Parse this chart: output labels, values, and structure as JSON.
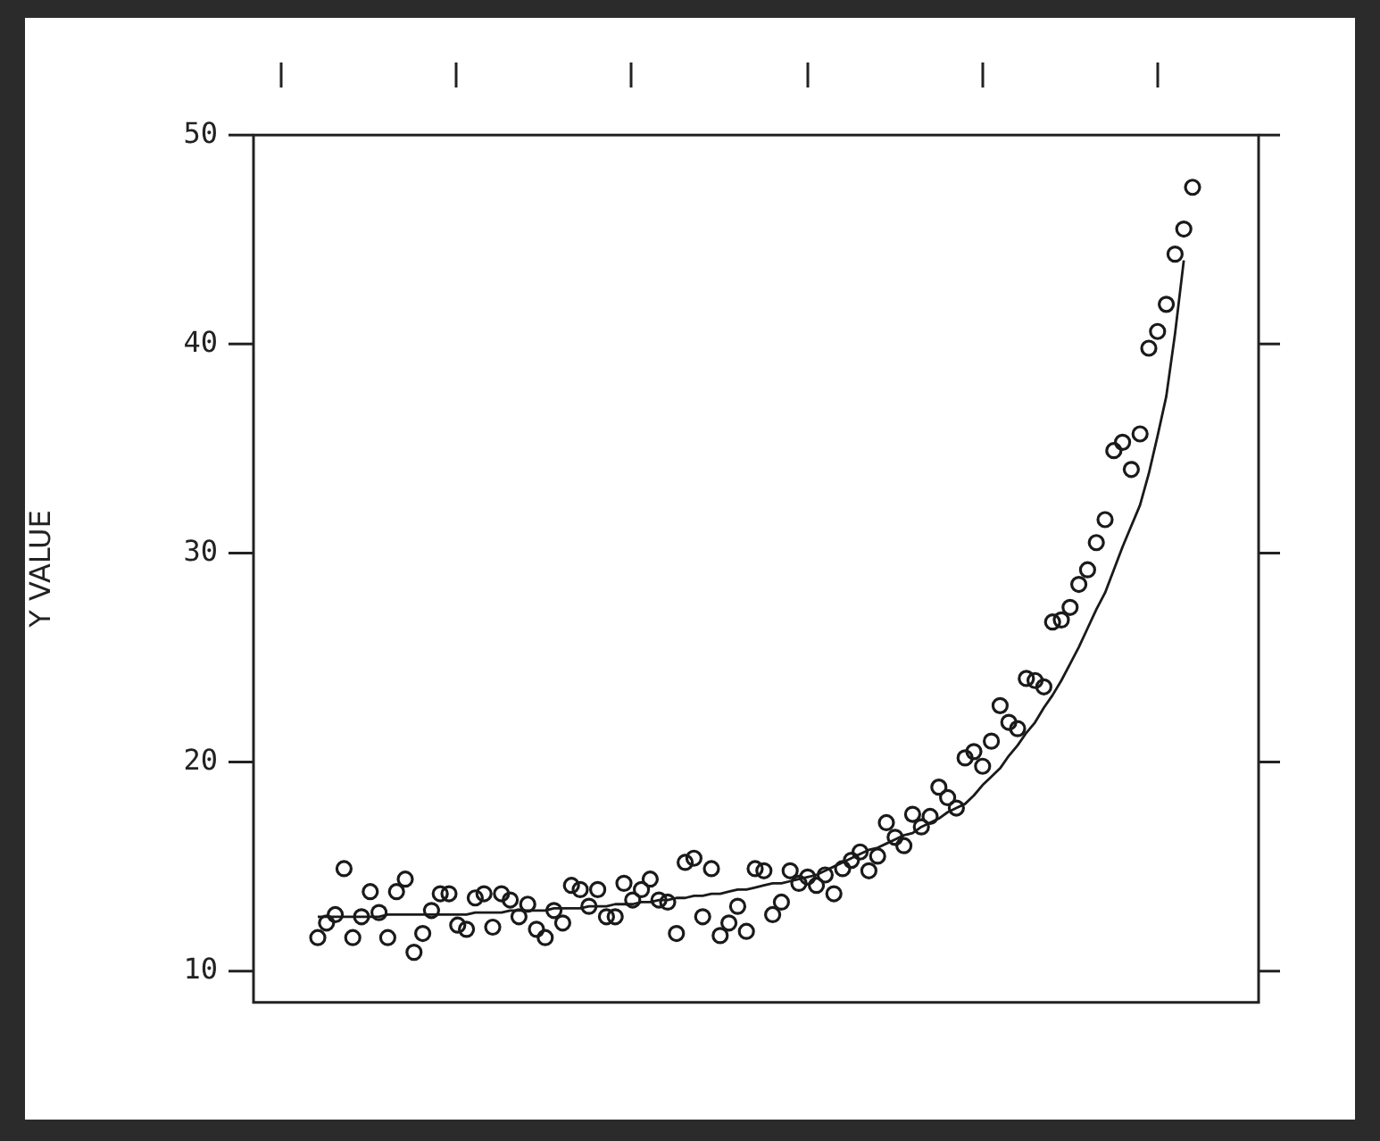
{
  "chart_data": {
    "type": "scatter",
    "ylabel": "Y VALUE",
    "categories": [
      null,
      null,
      null,
      null,
      null,
      null,
      null,
      null,
      null,
      null,
      null,
      null,
      null,
      null,
      null,
      null,
      null,
      null,
      null,
      null,
      null,
      null,
      null,
      null,
      null,
      null,
      null,
      null,
      null,
      null,
      null,
      null,
      null,
      null,
      null,
      null,
      null,
      null,
      null,
      null,
      null,
      null,
      null,
      null,
      null,
      null,
      null,
      null,
      null,
      null,
      null,
      null,
      null,
      null,
      null,
      null,
      null,
      null,
      null,
      null,
      null,
      null,
      null,
      null,
      null,
      null,
      null,
      null,
      null,
      null,
      null,
      null,
      null,
      null,
      null,
      null,
      null,
      null,
      null,
      null,
      null,
      null,
      null,
      null,
      null,
      null,
      null,
      null,
      null,
      null,
      null,
      null,
      null,
      null,
      null,
      null,
      null,
      null,
      null,
      null,
      null
    ],
    "ylim": [
      8.5,
      50
    ],
    "yticks": [
      10,
      20,
      30,
      40,
      50
    ],
    "tick_labels": "y",
    "legend": false,
    "series": [
      {
        "color": "#1a1a1a",
        "marker": "circle",
        "values": [
          11.6,
          12.3,
          12.7,
          14.9,
          11.6,
          12.6,
          13.8,
          12.8,
          11.6,
          13.8,
          14.4,
          10.9,
          11.8,
          12.9,
          13.7,
          13.7,
          12.2,
          12.0,
          13.5,
          13.7,
          12.1,
          13.7,
          13.4,
          12.6,
          13.2,
          12.0,
          11.6,
          12.9,
          12.3,
          14.1,
          13.9,
          13.1,
          13.9,
          12.6,
          12.6,
          14.2,
          13.4,
          13.9,
          14.4,
          13.4,
          13.3,
          11.8,
          15.2,
          15.4,
          12.6,
          14.9,
          11.7,
          12.3,
          13.1,
          11.9,
          14.9,
          14.8,
          12.7,
          13.3,
          14.8,
          14.2,
          14.5,
          14.1,
          14.6,
          13.7,
          14.9,
          15.3,
          15.7,
          14.8,
          15.5,
          17.1,
          16.4,
          16.0,
          17.5,
          16.9,
          17.4,
          18.8,
          18.3,
          17.8,
          20.2,
          20.5,
          19.8,
          21.0,
          22.7,
          21.9,
          21.6,
          24.0,
          23.9,
          23.6,
          26.7,
          26.8,
          27.4,
          28.5,
          29.2,
          30.5,
          31.6,
          34.9,
          35.3,
          34.0,
          35.7,
          39.8,
          40.6,
          41.9,
          44.3,
          45.5,
          47.5
        ]
      },
      {
        "type": "line",
        "color": "#1a1a1a",
        "values": [
          12.6,
          12.6,
          12.6,
          12.6,
          12.6,
          12.6,
          12.6,
          12.6,
          12.7,
          12.7,
          12.7,
          12.7,
          12.7,
          12.7,
          12.7,
          12.7,
          12.7,
          12.7,
          12.8,
          12.8,
          12.8,
          12.8,
          12.9,
          12.9,
          12.9,
          12.9,
          12.9,
          13.0,
          13.0,
          13.0,
          13.0,
          13.1,
          13.1,
          13.1,
          13.2,
          13.2,
          13.2,
          13.3,
          13.3,
          13.4,
          13.4,
          13.5,
          13.5,
          13.6,
          13.6,
          13.7,
          13.7,
          13.8,
          13.9,
          13.9,
          14.0,
          14.1,
          14.2,
          14.2,
          14.3,
          14.4,
          14.5,
          14.6,
          14.8,
          15.0,
          15.2,
          15.4,
          15.6,
          15.8,
          15.9,
          16.1,
          16.3,
          16.5,
          16.6,
          16.9,
          17.1,
          17.3,
          17.6,
          17.8,
          18.0,
          18.4,
          18.9,
          19.3,
          19.7,
          20.3,
          20.8,
          21.4,
          21.9,
          22.6,
          23.2,
          23.9,
          24.7,
          25.5,
          26.4,
          27.3,
          28.1,
          29.2,
          30.3,
          31.3,
          32.3,
          33.8,
          35.6,
          37.5,
          40.5,
          44.0,
          null
        ]
      }
    ]
  }
}
